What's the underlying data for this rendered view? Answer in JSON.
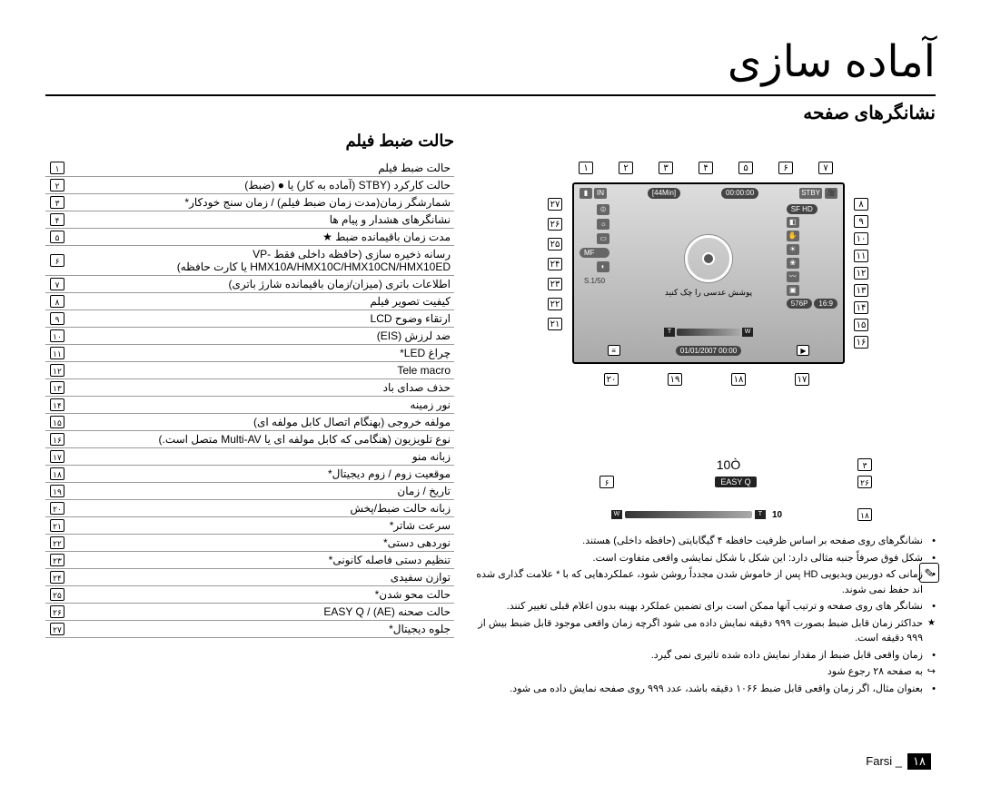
{
  "title": "آماده سازی",
  "subtitle": "نشانگرهای صفحه",
  "section_title": "حالت ضبط فیلم",
  "lcd": {
    "time_counter": "00:00:00",
    "remain_time": "[44Min]",
    "battery_min": "80 Min",
    "sf_hd": "SF HD",
    "mf": "MF",
    "shutter": "S.1/50",
    "aspect": "16:9",
    "res": "576P",
    "focus_text": "پوشش عدسی را چک کنید",
    "zoom_w": "W",
    "zoom_t": "T",
    "datetime": "01/01/2007 00:00",
    "play_icon": "▶",
    "menu_icon": "≡",
    "stby_icon": "STBY"
  },
  "easy_q": {
    "label": "EASY Q",
    "timer": "10Ò"
  },
  "zoom_row": {
    "w": "W",
    "t": "T",
    "val": "10"
  },
  "notes": [
    {
      "type": "bullet",
      "text": "نشانگرهای روی صفحه بر اساس ظرفیت حافظه ۴ گیگابایتی (حافظه داخلی) هستند."
    },
    {
      "type": "bullet",
      "text": "شكل فوق صرفاً جنبه مثالی دارد: این شكل با شكل نمایشی واقعی متفاوت است."
    },
    {
      "type": "bullet",
      "text": "زمانی که دوربین ویدیویی HD پس از خاموش شدن مجدداً روشن شود، عملکردهایی که با * علامت گذاری شده اند حفظ نمی شوند."
    },
    {
      "type": "bullet",
      "text": "نشانگر های روی صفحه و ترتیب آنها ممکن است برای تضمین عملکرد بهینه بدون اعلام قبلی تغییر کنند."
    },
    {
      "type": "star",
      "text": "حداکثر زمان قابل ضبط بصورت ٩٩٩ دقیقه نمایش داده می شود اگرچه زمان واقعی موجود قابل ضبط بیش از ٩٩٩ دقیقه است."
    },
    {
      "type": "bullet",
      "text": "زمان واقعی قابل ضبط از مقدار نمایش داده شده تاثیری نمی گیرد."
    },
    {
      "type": "arrow",
      "text": "به صفحه ۲۸ رجوع شود"
    },
    {
      "type": "bullet",
      "text": "بعنوان مثال، اگر زمان واقعی قابل ضبط ١٠۶۶ دقیقه باشد، عدد ٩٩٩ روی صفحه نمایش داده می شود."
    }
  ],
  "legend": [
    {
      "n": "١",
      "t": "حالت ضبط فیلم"
    },
    {
      "n": "٢",
      "t": "حالت کارکرد (STBY (آماده به کار) یا ● (ضبط)"
    },
    {
      "n": "٣",
      "t": "شمارشگر زمان(مدت زمان ضبط فیلم) / زمان سنج خودکار*"
    },
    {
      "n": "۴",
      "t": "نشانگرهای هشدار و پیام ها"
    },
    {
      "n": "۵",
      "t": "مدت زمان باقیمانده ضبط ★"
    },
    {
      "n": "۶",
      "t": "رسانه ذخیره سازی (حافظه داخلی فقط VP-HMX10A/HMX10C/HMX10CN/HMX10ED یا کارت حافظه)"
    },
    {
      "n": "٧",
      "t": "اطلاعات باتری (میزان/زمان باقیمانده شارژ باتری)"
    },
    {
      "n": "٨",
      "t": "کیفیت تصویر فیلم"
    },
    {
      "n": "٩",
      "t": "ارتقاء وضوح LCD"
    },
    {
      "n": "١٠",
      "t": "ضد لرزش (EIS)"
    },
    {
      "n": "١١",
      "t": "چراغ LED*"
    },
    {
      "n": "١٢",
      "t": "Tele macro"
    },
    {
      "n": "١٣",
      "t": "حذف صدای باد"
    },
    {
      "n": "١۴",
      "t": "نور زمینه"
    },
    {
      "n": "١۵",
      "t": "مولفه خروجی (بهنگام اتصال کابل مولفه ای)"
    },
    {
      "n": "١۶",
      "t": "نوع تلویزیون (هنگامی که کابل مولفه ای یا Multi-AV متصل است.)"
    },
    {
      "n": "١٧",
      "t": "زبانه منو"
    },
    {
      "n": "١٨",
      "t": "موقعیت زوم / زوم دیجیتال*"
    },
    {
      "n": "١٩",
      "t": "تاریخ / زمان"
    },
    {
      "n": "٢٠",
      "t": "زبانه حالت ضبط/پخش"
    },
    {
      "n": "٢١",
      "t": "سرعت شاتر*"
    },
    {
      "n": "٢٢",
      "t": "نوردهی دستی*"
    },
    {
      "n": "٢٣",
      "t": "تنظیم دستی فاصله کانونی*"
    },
    {
      "n": "٢۴",
      "t": "توازن سفیدی"
    },
    {
      "n": "٢۵",
      "t": "حالت محو شدن*"
    },
    {
      "n": "٢۶",
      "t": "حالت صحنه EASY Q / (AE)"
    },
    {
      "n": "٢٧",
      "t": "جلوه دیجیتال*"
    }
  ],
  "diagram_numbers_top": [
    "١",
    "٢",
    "٣",
    "۴",
    "۵",
    "۶",
    "٧"
  ],
  "diagram_numbers_left": [
    "٢٧",
    "٢۶",
    "٢۵",
    "٢۴",
    "٢٣",
    "٢٢",
    "٢١"
  ],
  "diagram_numbers_right": [
    "٨",
    "٩",
    "١٠",
    "١١",
    "١٢",
    "١٣",
    "١۴",
    "١۵",
    "١۶"
  ],
  "diagram_numbers_bottom": [
    "٢٠",
    "١٩",
    "١٨",
    "١٧"
  ],
  "easy_callouts": {
    "l1": "٣",
    "l2": "٢۶",
    "l3": "١٨",
    "r1": "١٠",
    "r2": "۶"
  },
  "footer": {
    "label": "Farsi _",
    "page": "١٨"
  }
}
